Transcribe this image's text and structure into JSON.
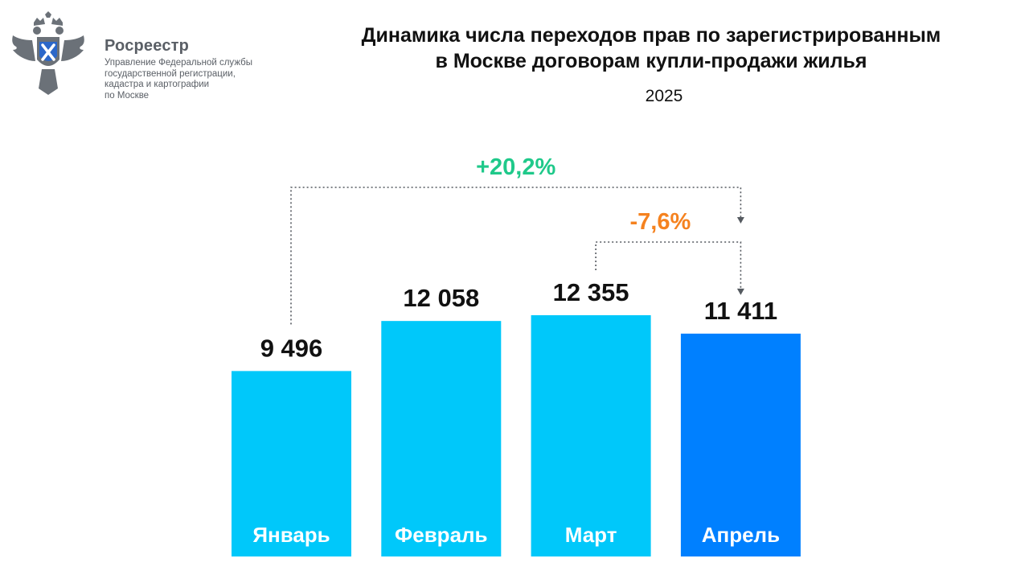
{
  "logo": {
    "name": "Росреестр",
    "description_lines": [
      "Управление Федеральной службы",
      "государственной регистрации,",
      "кадастра и картографии",
      "по Москве"
    ]
  },
  "chart_data": {
    "type": "bar",
    "title_lines": [
      "Динамика числа переходов прав по зарегистрированным",
      "в Москве договорам купли-продажи жилья"
    ],
    "subtitle": "2025",
    "categories": [
      "Январь",
      "Февраль",
      "Март",
      "Апрель"
    ],
    "values": [
      9496,
      12058,
      12355,
      11411
    ],
    "value_labels": [
      "9 496",
      "12 058",
      "12 355",
      "11 411"
    ],
    "bar_colors": [
      "#00c8fa",
      "#00c8fa",
      "#00c8fa",
      "#0080ff"
    ],
    "ylim": [
      0,
      14000
    ],
    "grid": false,
    "annotations": [
      {
        "text": "+20,2%",
        "from": "Январь",
        "to": "Апрель",
        "color": "#1fc98a"
      },
      {
        "text": "-7,6%",
        "from": "Март",
        "to": "Апрель",
        "color": "#f5821f"
      }
    ]
  }
}
